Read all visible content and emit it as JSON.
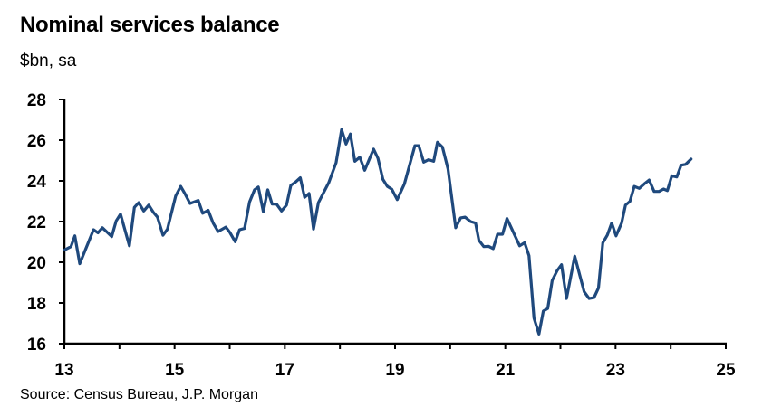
{
  "chart_data": {
    "type": "line",
    "title": "Nominal services balance",
    "subtitle": "$bn, sa",
    "source": "Source: Census Bureau, J.P. Morgan",
    "xlabel": "",
    "ylabel": "",
    "xlim": [
      13,
      25
    ],
    "ylim": [
      16,
      28
    ],
    "x_ticks": [
      "13",
      "15",
      "17",
      "19",
      "21",
      "23",
      "25"
    ],
    "y_ticks": [
      "16",
      "18",
      "20",
      "22",
      "24",
      "26",
      "28"
    ],
    "grid": false,
    "legend": "none",
    "line_color": "#1f497d",
    "series": [
      {
        "x": [
          13.0,
          13.12,
          13.19,
          13.28,
          13.53,
          13.61,
          13.69,
          13.86,
          13.94,
          14.02,
          14.18,
          14.27,
          14.35,
          14.44,
          14.53,
          14.62,
          14.69,
          14.79,
          14.87,
          15.02,
          15.11,
          15.18,
          15.28,
          15.43,
          15.51,
          15.61,
          15.7,
          15.79,
          15.93,
          16.0,
          16.1,
          16.18,
          16.27,
          16.36,
          16.45,
          16.52,
          16.61,
          16.69,
          16.77,
          16.85,
          16.94,
          17.03,
          17.11,
          17.19,
          17.28,
          17.36,
          17.44,
          17.52,
          17.61,
          17.8,
          17.93,
          18.03,
          18.11,
          18.19,
          18.27,
          18.36,
          18.45,
          18.61,
          18.69,
          18.78,
          18.86,
          18.94,
          19.04,
          19.17,
          19.36,
          19.43,
          19.52,
          19.61,
          19.7,
          19.77,
          19.86,
          19.96,
          20.1,
          20.19,
          20.27,
          20.37,
          20.46,
          20.52,
          20.61,
          20.7,
          20.78,
          20.86,
          20.95,
          21.03,
          21.26,
          21.35,
          21.43,
          21.52,
          21.61,
          21.69,
          21.77,
          21.85,
          21.94,
          22.02,
          22.11,
          22.26,
          22.43,
          22.52,
          22.61,
          22.69,
          22.77,
          22.85,
          22.93,
          23.01,
          23.11,
          23.18,
          23.26,
          23.34,
          23.43,
          23.52,
          23.61,
          23.7,
          23.79,
          23.87,
          23.94,
          24.02,
          24.11,
          24.19,
          24.27,
          24.37
        ],
        "values": [
          20.6,
          20.77,
          21.3,
          19.93,
          21.6,
          21.45,
          21.7,
          21.26,
          22.03,
          22.37,
          20.81,
          22.7,
          22.93,
          22.52,
          22.81,
          22.44,
          22.22,
          21.33,
          21.63,
          23.26,
          23.73,
          23.41,
          22.89,
          23.04,
          22.41,
          22.55,
          21.93,
          21.51,
          21.73,
          21.48,
          21.01,
          21.6,
          21.66,
          22.96,
          23.56,
          23.7,
          22.49,
          23.56,
          22.86,
          22.86,
          22.52,
          22.81,
          23.78,
          23.93,
          24.15,
          23.19,
          23.38,
          21.63,
          22.93,
          23.93,
          24.89,
          26.52,
          25.81,
          26.3,
          24.96,
          25.16,
          24.52,
          25.56,
          25.11,
          24.07,
          23.73,
          23.59,
          23.08,
          23.85,
          25.73,
          25.73,
          24.92,
          25.04,
          24.96,
          25.9,
          25.66,
          24.59,
          21.7,
          22.18,
          22.22,
          22.0,
          21.93,
          21.08,
          20.77,
          20.78,
          20.67,
          21.38,
          21.38,
          22.15,
          20.81,
          20.96,
          20.33,
          17.26,
          16.47,
          17.6,
          17.73,
          19.1,
          19.59,
          19.88,
          18.22,
          20.3,
          18.55,
          18.22,
          18.26,
          18.74,
          20.96,
          21.33,
          21.93,
          21.3,
          21.93,
          22.81,
          22.99,
          23.73,
          23.63,
          23.85,
          24.04,
          23.48,
          23.48,
          23.6,
          23.52,
          24.25,
          24.19,
          24.77,
          24.81,
          25.07
        ]
      }
    ]
  }
}
